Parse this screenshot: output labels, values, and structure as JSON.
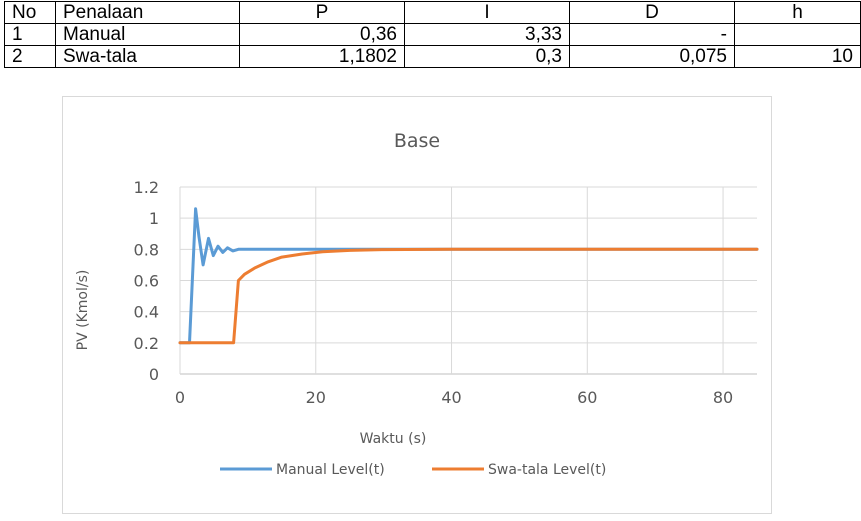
{
  "table": {
    "headers": [
      "No",
      "Penalaan",
      "P",
      "I",
      "D",
      "h"
    ],
    "rows": [
      [
        "1",
        "Manual",
        "0,36",
        "3,33",
        "-",
        ""
      ],
      [
        "2",
        "Swa-tala",
        "1,1802",
        "0,3",
        "0,075",
        "10"
      ]
    ]
  },
  "chart_data": {
    "type": "line",
    "title": "Base",
    "xlabel": "Waktu (s)",
    "ylabel": "PV (Kmol/s)",
    "xlim": [
      0,
      85
    ],
    "ylim": [
      0,
      1.2
    ],
    "x_ticks": [
      0,
      20,
      40,
      60,
      80
    ],
    "x_tick_labels": [
      "0",
      "20",
      "40",
      "60",
      "80"
    ],
    "y_ticks": [
      0,
      0.2,
      0.4,
      0.6,
      0.8,
      1.0,
      1.2
    ],
    "y_tick_labels": [
      "0",
      "0.2",
      "0.4",
      "0.6",
      "0.8",
      "1",
      "1.2"
    ],
    "grid": true,
    "legend_position": "bottom",
    "series": [
      {
        "name": "Manual Level(t)",
        "color": "#5b9bd5",
        "x": [
          0,
          1.4,
          2.3,
          2.8,
          3.4,
          4.2,
          4.9,
          5.6,
          6.3,
          7.0,
          7.8,
          8.6,
          10,
          12,
          20,
          40,
          60,
          85
        ],
        "y": [
          0.2,
          0.2,
          1.06,
          0.88,
          0.7,
          0.87,
          0.76,
          0.82,
          0.78,
          0.81,
          0.79,
          0.8,
          0.8,
          0.8,
          0.8,
          0.8,
          0.8,
          0.8
        ]
      },
      {
        "name": "Swa-tala Level(t)",
        "color": "#ed7d31",
        "x": [
          0,
          7.9,
          8.6,
          9.5,
          11,
          13,
          15,
          18,
          21,
          25,
          30,
          40,
          60,
          85
        ],
        "y": [
          0.2,
          0.2,
          0.6,
          0.64,
          0.68,
          0.72,
          0.75,
          0.77,
          0.785,
          0.793,
          0.798,
          0.8,
          0.8,
          0.8
        ]
      }
    ]
  }
}
